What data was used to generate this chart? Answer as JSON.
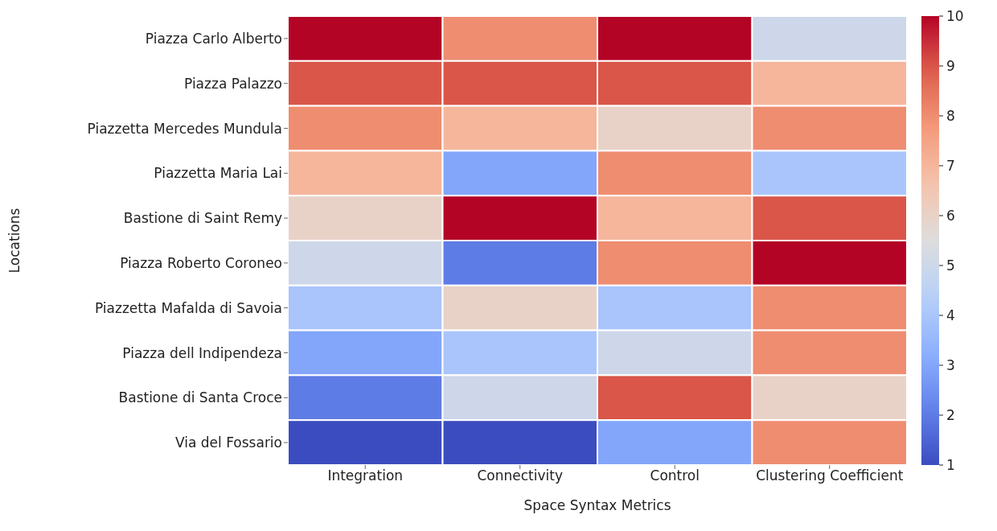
{
  "chart_data": {
    "type": "heatmap",
    "xlabel": "Space Syntax Metrics",
    "ylabel": "Locations",
    "categories": [
      "Integration",
      "Connectivity",
      "Control",
      "Clustering Coefficient"
    ],
    "y_categories": [
      "Piazza Carlo Alberto",
      "Piazza Palazzo",
      "Piazzetta Mercedes Mundula",
      "Piazzetta Maria Lai",
      "Bastione di Saint Remy",
      "Piazza Roberto Coroneo",
      "Piazzetta Mafalda di Savoia",
      "Piazza dell Indipendeza",
      "Bastione di Santa Croce",
      "Via del Fossario"
    ],
    "cells": [
      [
        10,
        8,
        10,
        5
      ],
      [
        9,
        9,
        9,
        7
      ],
      [
        8,
        7,
        6,
        8
      ],
      [
        7,
        3,
        8,
        4
      ],
      [
        6,
        10,
        7,
        9
      ],
      [
        5,
        2,
        8,
        10
      ],
      [
        4,
        6,
        4,
        8
      ],
      [
        3,
        4,
        5,
        8
      ],
      [
        2,
        5,
        9,
        6
      ],
      [
        1,
        1,
        3,
        8
      ]
    ],
    "clim": [
      1,
      10
    ],
    "cticks": [
      1,
      2,
      3,
      4,
      5,
      6,
      7,
      8,
      9,
      10
    ]
  }
}
